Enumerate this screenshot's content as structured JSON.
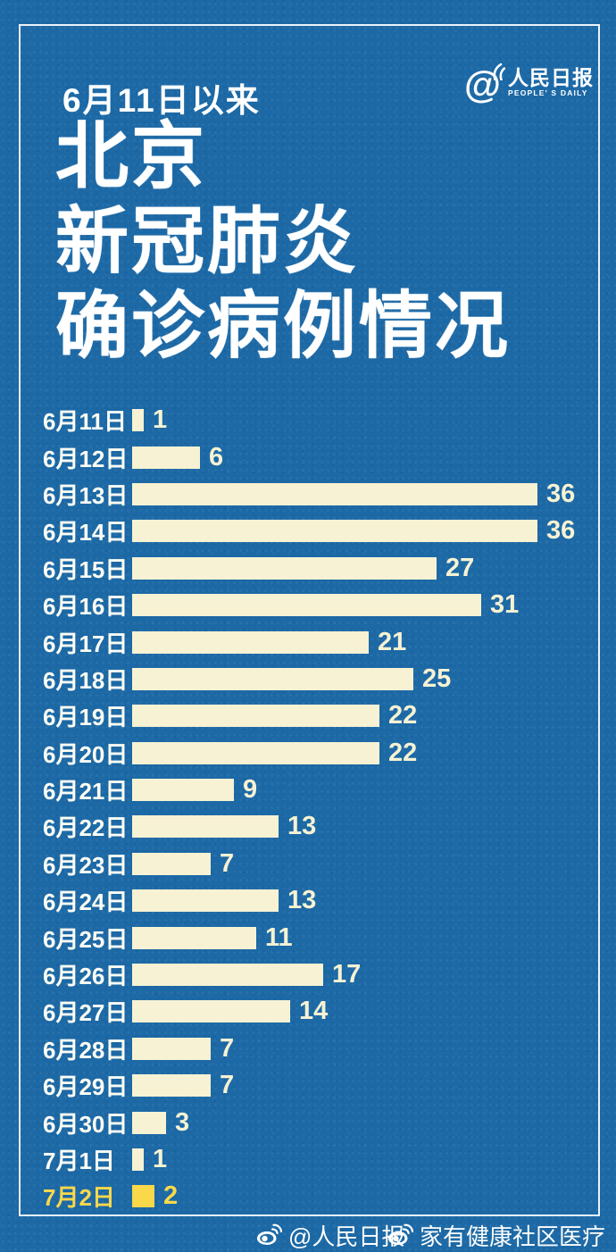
{
  "header": {
    "subtitle": "6月11日以来",
    "title_line1": "北京",
    "title_line2": "新冠肺炎",
    "title_line3": "确诊病例情况",
    "logo": {
      "at_symbol": "@",
      "name_cn": "人民日报",
      "name_en": "PEOPLE' S DAILY"
    }
  },
  "chart_data": {
    "type": "bar",
    "orientation": "horizontal",
    "title": "6月11日以来北京新冠肺炎确诊病例情况",
    "categories": [
      "6月11日",
      "6月12日",
      "6月13日",
      "6月14日",
      "6月15日",
      "6月16日",
      "6月17日",
      "6月18日",
      "6月19日",
      "6月20日",
      "6月21日",
      "6月22日",
      "6月23日",
      "6月24日",
      "6月25日",
      "6月26日",
      "6月27日",
      "6月28日",
      "6月29日",
      "6月30日",
      "7月1日",
      "7月2日"
    ],
    "values": [
      1,
      6,
      36,
      36,
      27,
      31,
      21,
      25,
      22,
      22,
      9,
      13,
      7,
      13,
      11,
      17,
      14,
      7,
      7,
      3,
      1,
      2
    ],
    "highlight_index": 21,
    "xlim": [
      0,
      36
    ],
    "grid": false,
    "value_labels_shown": true,
    "colors": {
      "background": "#1c69a6",
      "bar": "#f6f2d3",
      "highlight": "#f9d84a",
      "category_label": "#fdfdf4"
    }
  },
  "footer": {
    "items": [
      {
        "icon": "weibo-icon",
        "label": "@人民日报"
      },
      {
        "icon": "weibo-icon",
        "label": "家有健康社区医疗"
      }
    ]
  }
}
